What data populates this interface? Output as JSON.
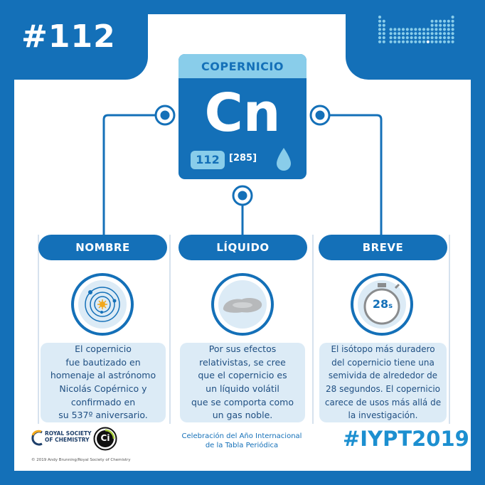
{
  "header": {
    "number_tag": "#112"
  },
  "element": {
    "name": "COPERNICIO",
    "symbol": "Cn",
    "atomic_number": "112",
    "mass": "[285]",
    "state_icon": "droplet-icon"
  },
  "facts": [
    {
      "title": "NOMBRE",
      "icon": "solar-system-icon",
      "lines": [
        "El copernicio",
        "fue bautizado en",
        "homenaje al astrónomo",
        "Nicolás Copérnico y",
        "confirmado en",
        "su 537º aniversario."
      ]
    },
    {
      "title": "LÍQUIDO",
      "icon": "liquid-puddle-icon",
      "lines": [
        "Por sus efectos",
        "relativistas, se cree",
        "que el copernicio es",
        "un líquido volátil",
        "que se comporta como",
        "un gas noble."
      ]
    },
    {
      "title": "BREVE",
      "icon": "stopwatch-icon",
      "stopwatch_value": "28",
      "stopwatch_unit": "s",
      "lines": [
        "El isótopo más duradero",
        "del copernicio tiene una",
        "semivida de alrededor de",
        "28 segundos. El copernicio",
        "carece de usos más allá de",
        "la investigación."
      ]
    }
  ],
  "footer": {
    "rsc_lines": [
      "ROYAL SOCIETY",
      "OF CHEMISTRY"
    ],
    "partner_logo_text": "Ci",
    "celebration_lines": [
      "Celebración del Año Internacional",
      "de la Tabla Periódica"
    ],
    "hashtag": "#IYPT2019",
    "copyright": "© 2019 Andy Brunning/Royal Society of Chemistry"
  },
  "colors": {
    "primary": "#1470b8",
    "light": "#89cdea",
    "pale": "#dcebf6",
    "text": "#1f4f82"
  }
}
